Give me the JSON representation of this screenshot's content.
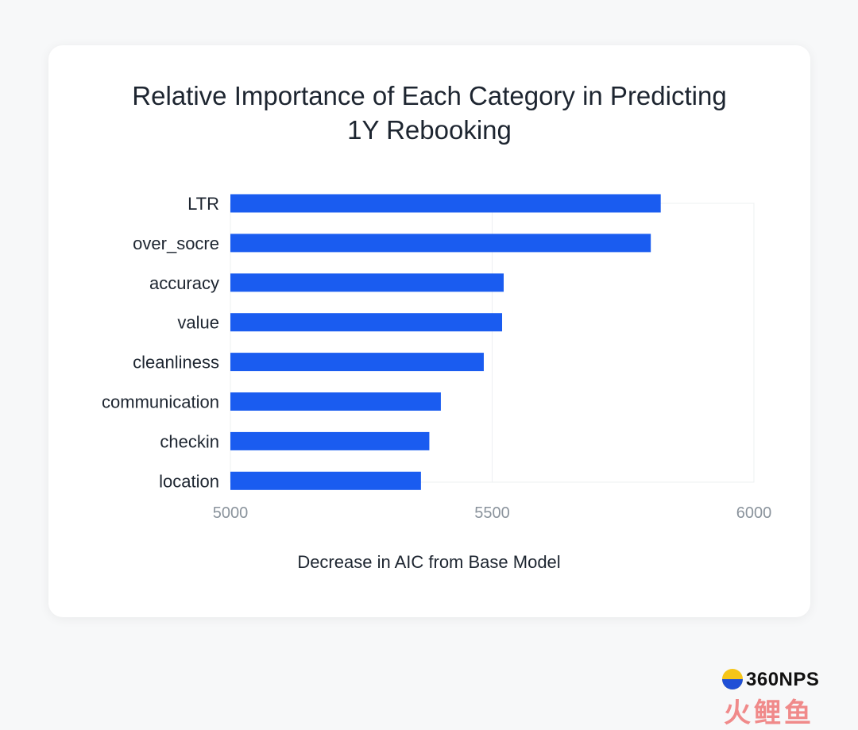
{
  "chart_data": {
    "type": "bar",
    "orientation": "horizontal",
    "title": "Relative Importance of Each Category in Predicting 1Y Rebooking",
    "title_lines": [
      "Relative Importance of Each Category in Predicting",
      "1Y Rebooking"
    ],
    "xlabel": "Decrease in AIC from Base Model",
    "ylabel": "",
    "categories": [
      "LTR",
      "over_socre",
      "accuracy",
      "value",
      "cleanliness",
      "communication",
      "checkin",
      "location"
    ],
    "values": [
      5822,
      5803,
      5522,
      5519,
      5484,
      5402,
      5380,
      5364
    ],
    "xlim": [
      5000,
      6000
    ],
    "xticks": [
      "5000",
      "5500",
      "6000"
    ],
    "grid": true,
    "bar_color": "#1a5cf0"
  },
  "watermark": {
    "brand": "360NPS",
    "chinese": "火鲤鱼"
  }
}
